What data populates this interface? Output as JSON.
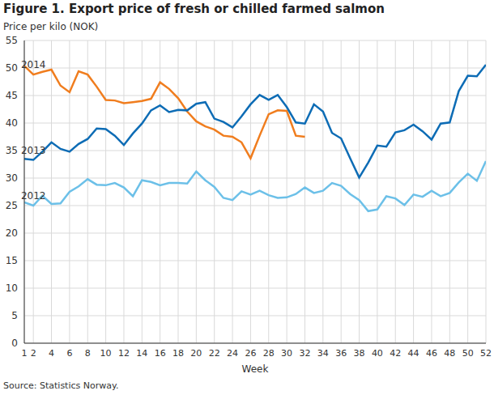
{
  "chart_data": {
    "type": "line",
    "title": "Figure 1. Export price of fresh or chilled farmed salmon",
    "y_label": "Price per kilo (NOK)",
    "x_label": "Week",
    "source": "Source: Statistics Norway.",
    "x": [
      1,
      2,
      3,
      4,
      5,
      6,
      7,
      8,
      9,
      10,
      11,
      12,
      13,
      14,
      15,
      16,
      17,
      18,
      19,
      20,
      21,
      22,
      23,
      24,
      25,
      26,
      27,
      28,
      29,
      30,
      31,
      32,
      33,
      34,
      35,
      36,
      37,
      38,
      39,
      40,
      41,
      42,
      43,
      44,
      45,
      46,
      47,
      48,
      49,
      50,
      51,
      52
    ],
    "xlim": [
      1,
      52
    ],
    "xticks": [
      1,
      2,
      4,
      6,
      8,
      10,
      12,
      14,
      16,
      18,
      20,
      22,
      24,
      26,
      28,
      30,
      32,
      34,
      36,
      38,
      40,
      42,
      44,
      46,
      48,
      50,
      52
    ],
    "ylim": [
      0,
      55
    ],
    "yticks": [
      0,
      5,
      10,
      15,
      20,
      25,
      30,
      35,
      40,
      45,
      50,
      55
    ],
    "grid": true,
    "series": [
      {
        "name": "2014",
        "color": "#f07d1e",
        "values": [
          50.4,
          48.8,
          49.3,
          49.7,
          46.8,
          45.6,
          49.4,
          48.8,
          46.6,
          44.2,
          44.1,
          43.6,
          43.8,
          44.0,
          44.4,
          47.4,
          46.2,
          44.5,
          42.1,
          40.3,
          39.4,
          38.8,
          37.7,
          37.5,
          36.5,
          33.6,
          37.7,
          41.6,
          42.3,
          42.2,
          37.7,
          37.5,
          null,
          null,
          null,
          null,
          null,
          null,
          null,
          null,
          null,
          null,
          null,
          null,
          null,
          null,
          null,
          null,
          null,
          null,
          null,
          null
        ]
      },
      {
        "name": "2013",
        "color": "#0d6cb5",
        "values": [
          33.5,
          33.3,
          34.8,
          36.5,
          35.3,
          34.8,
          36.2,
          37.1,
          39.0,
          38.9,
          37.7,
          36.0,
          38.1,
          39.9,
          42.3,
          43.2,
          42.0,
          42.4,
          42.3,
          43.5,
          43.8,
          40.8,
          40.2,
          39.2,
          41.2,
          43.4,
          45.1,
          44.2,
          45.1,
          42.9,
          40.1,
          39.9,
          43.4,
          42.1,
          38.2,
          37.2,
          33.6,
          30.1,
          32.8,
          35.9,
          35.7,
          38.3,
          38.7,
          39.7,
          38.5,
          37.0,
          39.9,
          40.1,
          45.8,
          48.6,
          48.5,
          50.6
        ]
      },
      {
        "name": "2012",
        "color": "#6cc0e8",
        "values": [
          25.6,
          25.0,
          26.8,
          25.3,
          25.4,
          27.5,
          28.5,
          29.8,
          28.8,
          28.7,
          29.1,
          28.3,
          26.7,
          29.6,
          29.3,
          28.7,
          29.1,
          29.1,
          29.0,
          31.2,
          29.6,
          28.4,
          26.4,
          26.0,
          27.6,
          27.0,
          27.7,
          26.9,
          26.4,
          26.5,
          27.1,
          28.3,
          27.3,
          27.7,
          29.1,
          28.6,
          27.1,
          26.0,
          24.0,
          24.3,
          26.7,
          26.3,
          25.1,
          27.0,
          26.6,
          27.7,
          26.7,
          27.3,
          29.2,
          30.8,
          29.5,
          33.1
        ]
      }
    ]
  }
}
